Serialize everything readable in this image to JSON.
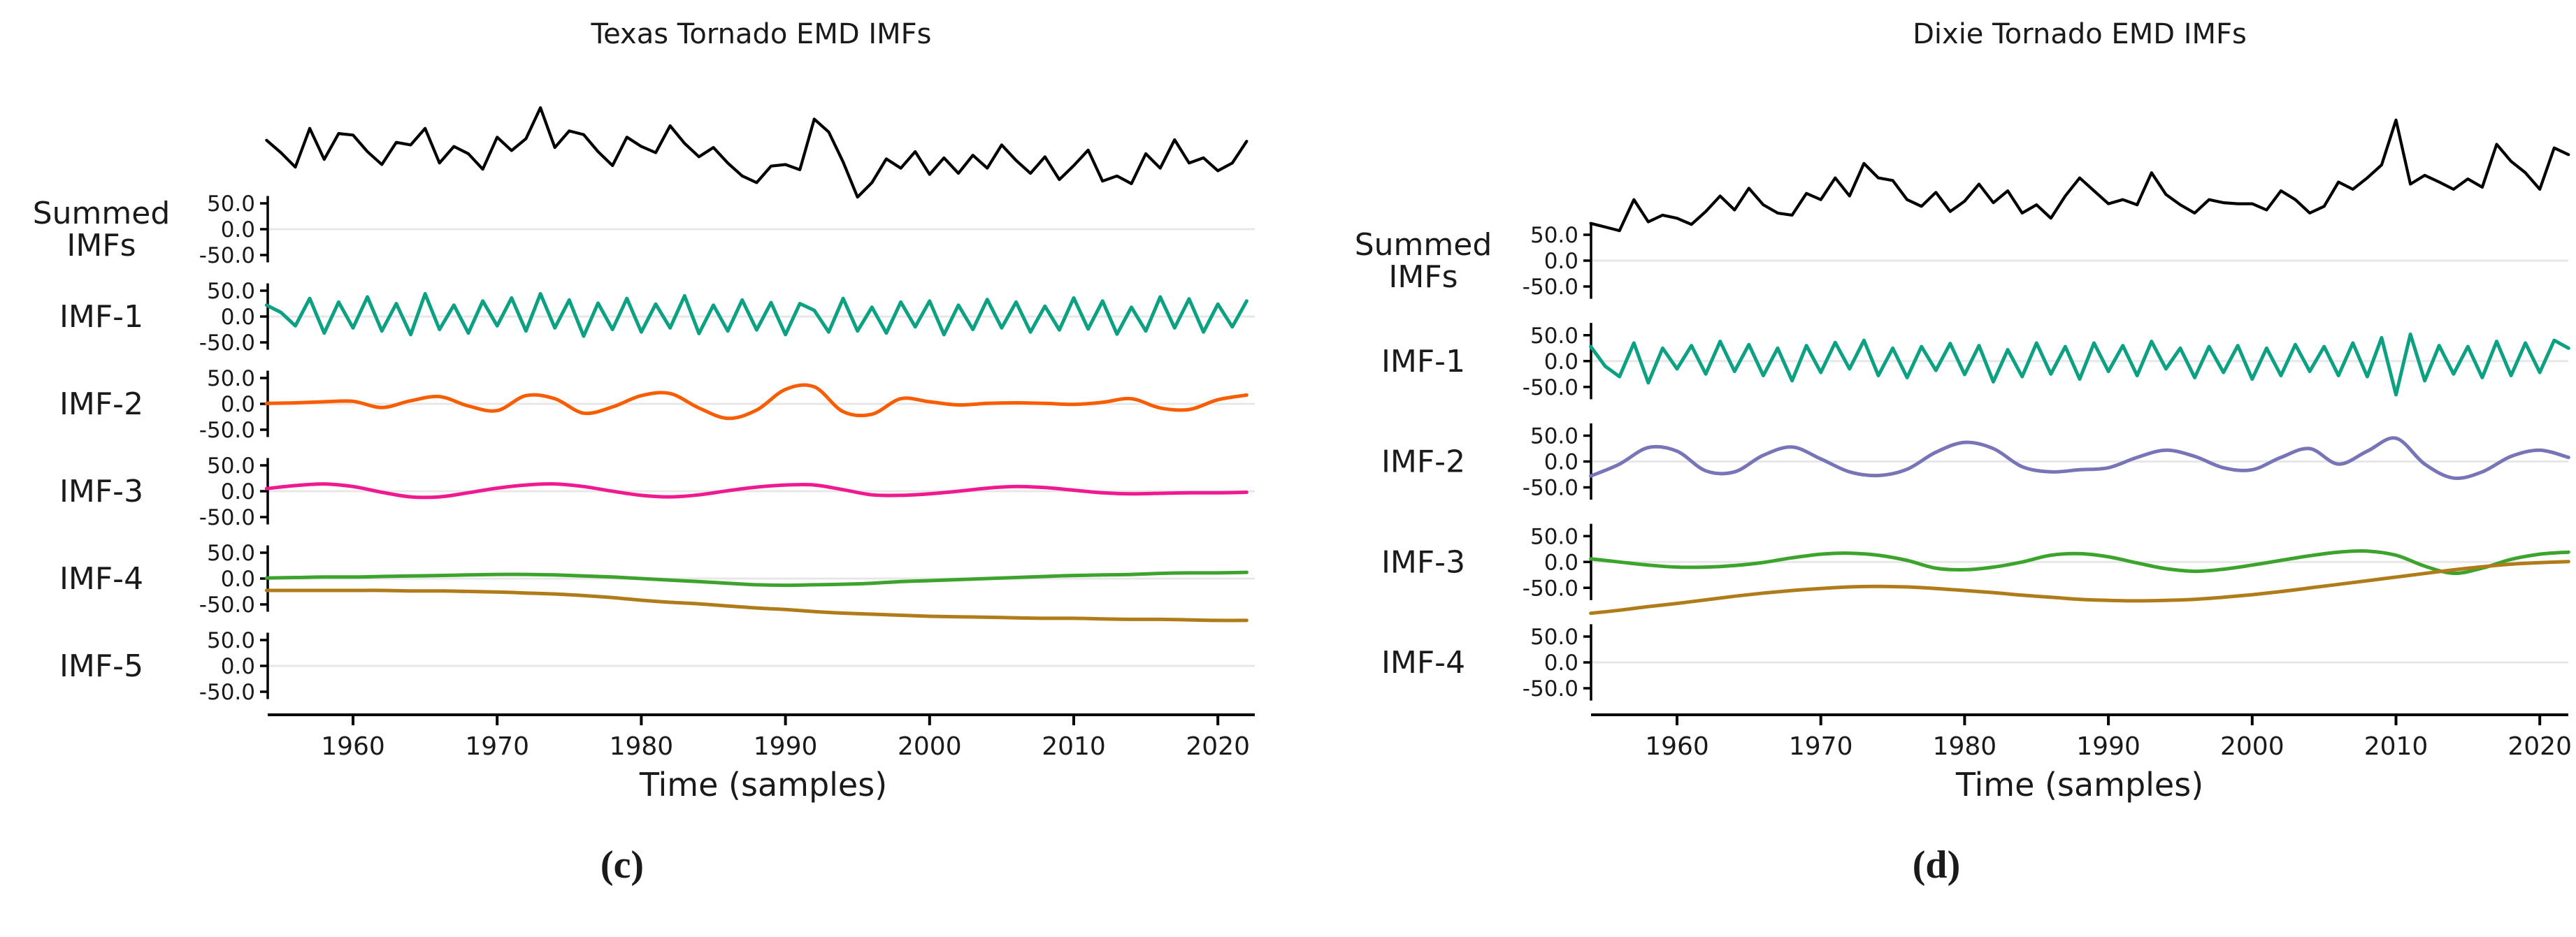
{
  "figure": {
    "background": "#ffffff",
    "grid_color": "#e7e7e7",
    "axis_color": "#000000",
    "text_color": "#1a1a1a"
  },
  "chart_data": [
    {
      "id": "texas",
      "type": "line",
      "title": "Texas Tornado EMD IMFs",
      "xlabel": "Time (samples)",
      "caption": "(c)",
      "x_ticks": [
        1960,
        1970,
        1980,
        1990,
        2000,
        2010,
        2020
      ],
      "x_range": [
        1954,
        2022
      ],
      "row_ylim": [
        -62,
        62
      ],
      "y_tick_labels": [
        "50.0",
        "0.0",
        "-50.0"
      ],
      "grid": "zero-line-only",
      "legend": "none",
      "note": "Lines are not clipped to their row axes; residue (IMF-5) overflows upward into the IMF-4 row.",
      "rows": [
        {
          "label_lines": [
            "Summed",
            "IMFs"
          ],
          "series": {
            "name": "summed-imfs",
            "color": "#000000",
            "line_width": 4.2,
            "smooth": false,
            "x_start": 1954,
            "x_step": 1,
            "values": [
              172,
              148,
              120,
              195,
              135,
              185,
              182,
              150,
              125,
              168,
              163,
              195,
              128,
              160,
              146,
              116,
              178,
              152,
              175,
              235,
              158,
              190,
              183,
              150,
              123,
              178,
              160,
              148,
              200,
              166,
              140,
              158,
              128,
              103,
              90,
              122,
              125,
              115,
              213,
              188,
              130,
              62,
              90,
              136,
              118,
              150,
              106,
              138,
              108,
              143,
              118,
              163,
              133,
              108,
              140,
              96,
              123,
              153,
              93,
              103,
              88,
              146,
              118,
              173,
              128,
              138,
              113,
              128,
              170
            ]
          }
        },
        {
          "label_lines": [
            "IMF-1"
          ],
          "series": {
            "name": "imf-1",
            "color": "#0ca183",
            "line_width": 5,
            "smooth": false,
            "x_start": 1954,
            "x_step": 1,
            "values": [
              22,
              8,
              -18,
              35,
              -32,
              28,
              -22,
              38,
              -28,
              25,
              -35,
              44,
              -25,
              22,
              -32,
              30,
              -18,
              36,
              -28,
              44,
              -22,
              32,
              -38,
              26,
              -25,
              35,
              -30,
              24,
              -22,
              40,
              -33,
              22,
              -28,
              32,
              -26,
              27,
              -35,
              25,
              12,
              -30,
              35,
              -28,
              18,
              -32,
              28,
              -20,
              30,
              -35,
              22,
              -25,
              33,
              -22,
              28,
              -30,
              20,
              -26,
              36,
              -24,
              30,
              -34,
              18,
              -28,
              38,
              -22,
              34,
              -30,
              24,
              -20,
              30
            ]
          }
        },
        {
          "label_lines": [
            "IMF-2"
          ],
          "series": {
            "name": "imf-2",
            "color": "#f95d02",
            "line_width": 5,
            "smooth": true,
            "x_start": 1954,
            "x_step": 2,
            "values": [
              1,
              2,
              4,
              5,
              -7,
              6,
              14,
              -4,
              -13,
              16,
              10,
              -18,
              -6,
              16,
              20,
              -8,
              -28,
              -12,
              28,
              33,
              -15,
              -20,
              10,
              4,
              -2,
              1,
              2,
              1,
              -1,
              3,
              10,
              -8,
              -11,
              8,
              17
            ]
          }
        },
        {
          "label_lines": [
            "IMF-3"
          ],
          "series": {
            "name": "imf-3",
            "color": "#f01990",
            "line_width": 5,
            "smooth": true,
            "x_start": 1954,
            "x_step": 2,
            "values": [
              5,
              11,
              14,
              9,
              -2,
              -11,
              -11,
              -3,
              6,
              12,
              14,
              9,
              0,
              -8,
              -11,
              -7,
              1,
              8,
              12,
              12,
              3,
              -7,
              -8,
              -5,
              0,
              6,
              9,
              7,
              2,
              -3,
              -5,
              -4,
              -3,
              -3,
              -2
            ]
          }
        },
        {
          "label_lines": [
            "IMF-4"
          ],
          "series": {
            "name": "imf-4",
            "color": "#3ca42c",
            "line_width": 5,
            "smooth": true,
            "x_start": 1954,
            "x_step": 2,
            "values": [
              1,
              2,
              3,
              3,
              4,
              5,
              6,
              7,
              8,
              8,
              7,
              5,
              3,
              0,
              -3,
              -6,
              -9,
              -12,
              -13,
              -12,
              -11,
              -9,
              -6,
              -4,
              -2,
              0,
              2,
              4,
              6,
              7,
              8,
              10,
              11,
              11,
              12
            ]
          }
        },
        {
          "label_lines": [
            "IMF-5"
          ],
          "series": {
            "name": "imf-5-residue",
            "color": "#b07c1a",
            "line_width": 5,
            "smooth": true,
            "x_start": 1954,
            "x_step": 2,
            "values": [
              146,
              146,
              146,
              146,
              146,
              145,
              145,
              144,
              143,
              141,
              139,
              136,
              132,
              127,
              123,
              120,
              116,
              112,
              109,
              105,
              102,
              100,
              98,
              96,
              95,
              94,
              93,
              92,
              92,
              91,
              90,
              90,
              89,
              88,
              88
            ]
          }
        }
      ]
    },
    {
      "id": "dixie",
      "type": "line",
      "title": "Dixie Tornado EMD IMFs",
      "xlabel": "Time (samples)",
      "caption": "(d)",
      "x_ticks": [
        1960,
        1970,
        1980,
        1990,
        2000,
        2010,
        2020
      ],
      "x_range": [
        1954,
        2022
      ],
      "row_ylim": [
        -62,
        62
      ],
      "y_tick_labels": [
        "50.0",
        "0.0",
        "-50.0"
      ],
      "grid": "zero-line-only",
      "legend": "none",
      "note": "Lines are not clipped to their row axes; residue (IMF-4) overflows upward into the IMF-3 row.",
      "rows": [
        {
          "label_lines": [
            "Summed",
            "IMFs"
          ],
          "series": {
            "name": "summed-imfs",
            "color": "#000000",
            "line_width": 4.2,
            "smooth": false,
            "x_start": 1954,
            "x_step": 1,
            "values": [
              72,
              65,
              58,
              118,
              75,
              88,
              82,
              70,
              95,
              125,
              98,
              140,
              108,
              92,
              88,
              130,
              118,
              160,
              125,
              188,
              160,
              155,
              118,
              105,
              132,
              95,
              115,
              148,
              112,
              135,
              92,
              108,
              82,
              125,
              160,
              135,
              110,
              118,
              108,
              170,
              128,
              108,
              92,
              118,
              112,
              110,
              110,
              98,
              135,
              118,
              92,
              105,
              152,
              138,
              160,
              185,
              272,
              148,
              165,
              152,
              138,
              158,
              142,
              225,
              192,
              170,
              138,
              218,
              205
            ]
          }
        },
        {
          "label_lines": [
            "IMF-1"
          ],
          "series": {
            "name": "imf-1",
            "color": "#0ca183",
            "line_width": 5,
            "smooth": false,
            "x_start": 1954,
            "x_step": 1,
            "values": [
              28,
              -10,
              -30,
              35,
              -42,
              25,
              -15,
              30,
              -25,
              38,
              -20,
              32,
              -28,
              25,
              -38,
              30,
              -22,
              36,
              -15,
              40,
              -28,
              25,
              -32,
              28,
              -18,
              34,
              -26,
              30,
              -40,
              22,
              -30,
              35,
              -25,
              28,
              -35,
              35,
              -20,
              30,
              -28,
              38,
              -15,
              25,
              -32,
              28,
              -22,
              30,
              -35,
              25,
              -28,
              32,
              -20,
              28,
              -28,
              35,
              -30,
              45,
              -65,
              52,
              -38,
              30,
              -25,
              28,
              -32,
              38,
              -28,
              35,
              -22,
              40,
              25
            ]
          }
        },
        {
          "label_lines": [
            "IMF-2"
          ],
          "series": {
            "name": "imf-2",
            "color": "#7874b8",
            "line_width": 5,
            "smooth": true,
            "x_start": 1954,
            "x_step": 2,
            "values": [
              -28,
              -5,
              27,
              20,
              -18,
              -20,
              12,
              28,
              5,
              -20,
              -27,
              -15,
              18,
              37,
              25,
              -10,
              -20,
              -16,
              -12,
              8,
              22,
              10,
              -12,
              -16,
              8,
              25,
              -5,
              20,
              45,
              -5,
              -32,
              -20,
              10,
              22,
              8
            ]
          }
        },
        {
          "label_lines": [
            "IMF-3"
          ],
          "series": {
            "name": "imf-3",
            "color": "#3ca42c",
            "line_width": 5,
            "smooth": true,
            "x_start": 1954,
            "x_step": 2,
            "values": [
              6,
              0,
              -6,
              -10,
              -10,
              -7,
              -1,
              8,
              15,
              17,
              13,
              3,
              -12,
              -15,
              -10,
              0,
              13,
              16,
              10,
              -2,
              -13,
              -18,
              -14,
              -6,
              3,
              12,
              19,
              21,
              13,
              -8,
              -22,
              -12,
              5,
              15,
              19
            ]
          }
        },
        {
          "label_lines": [
            "IMF-4"
          ],
          "series": {
            "name": "imf-4-residue",
            "color": "#b07c1a",
            "line_width": 5,
            "smooth": true,
            "x_start": 1954,
            "x_step": 2,
            "values": [
              95,
              101,
              108,
              114,
              121,
              128,
              134,
              139,
              143,
              146,
              147,
              146,
              143,
              139,
              135,
              130,
              126,
              122,
              120,
              119,
              120,
              122,
              126,
              131,
              137,
              144,
              151,
              158,
              165,
              172,
              179,
              185,
              190,
              193,
              195
            ]
          }
        }
      ]
    }
  ]
}
